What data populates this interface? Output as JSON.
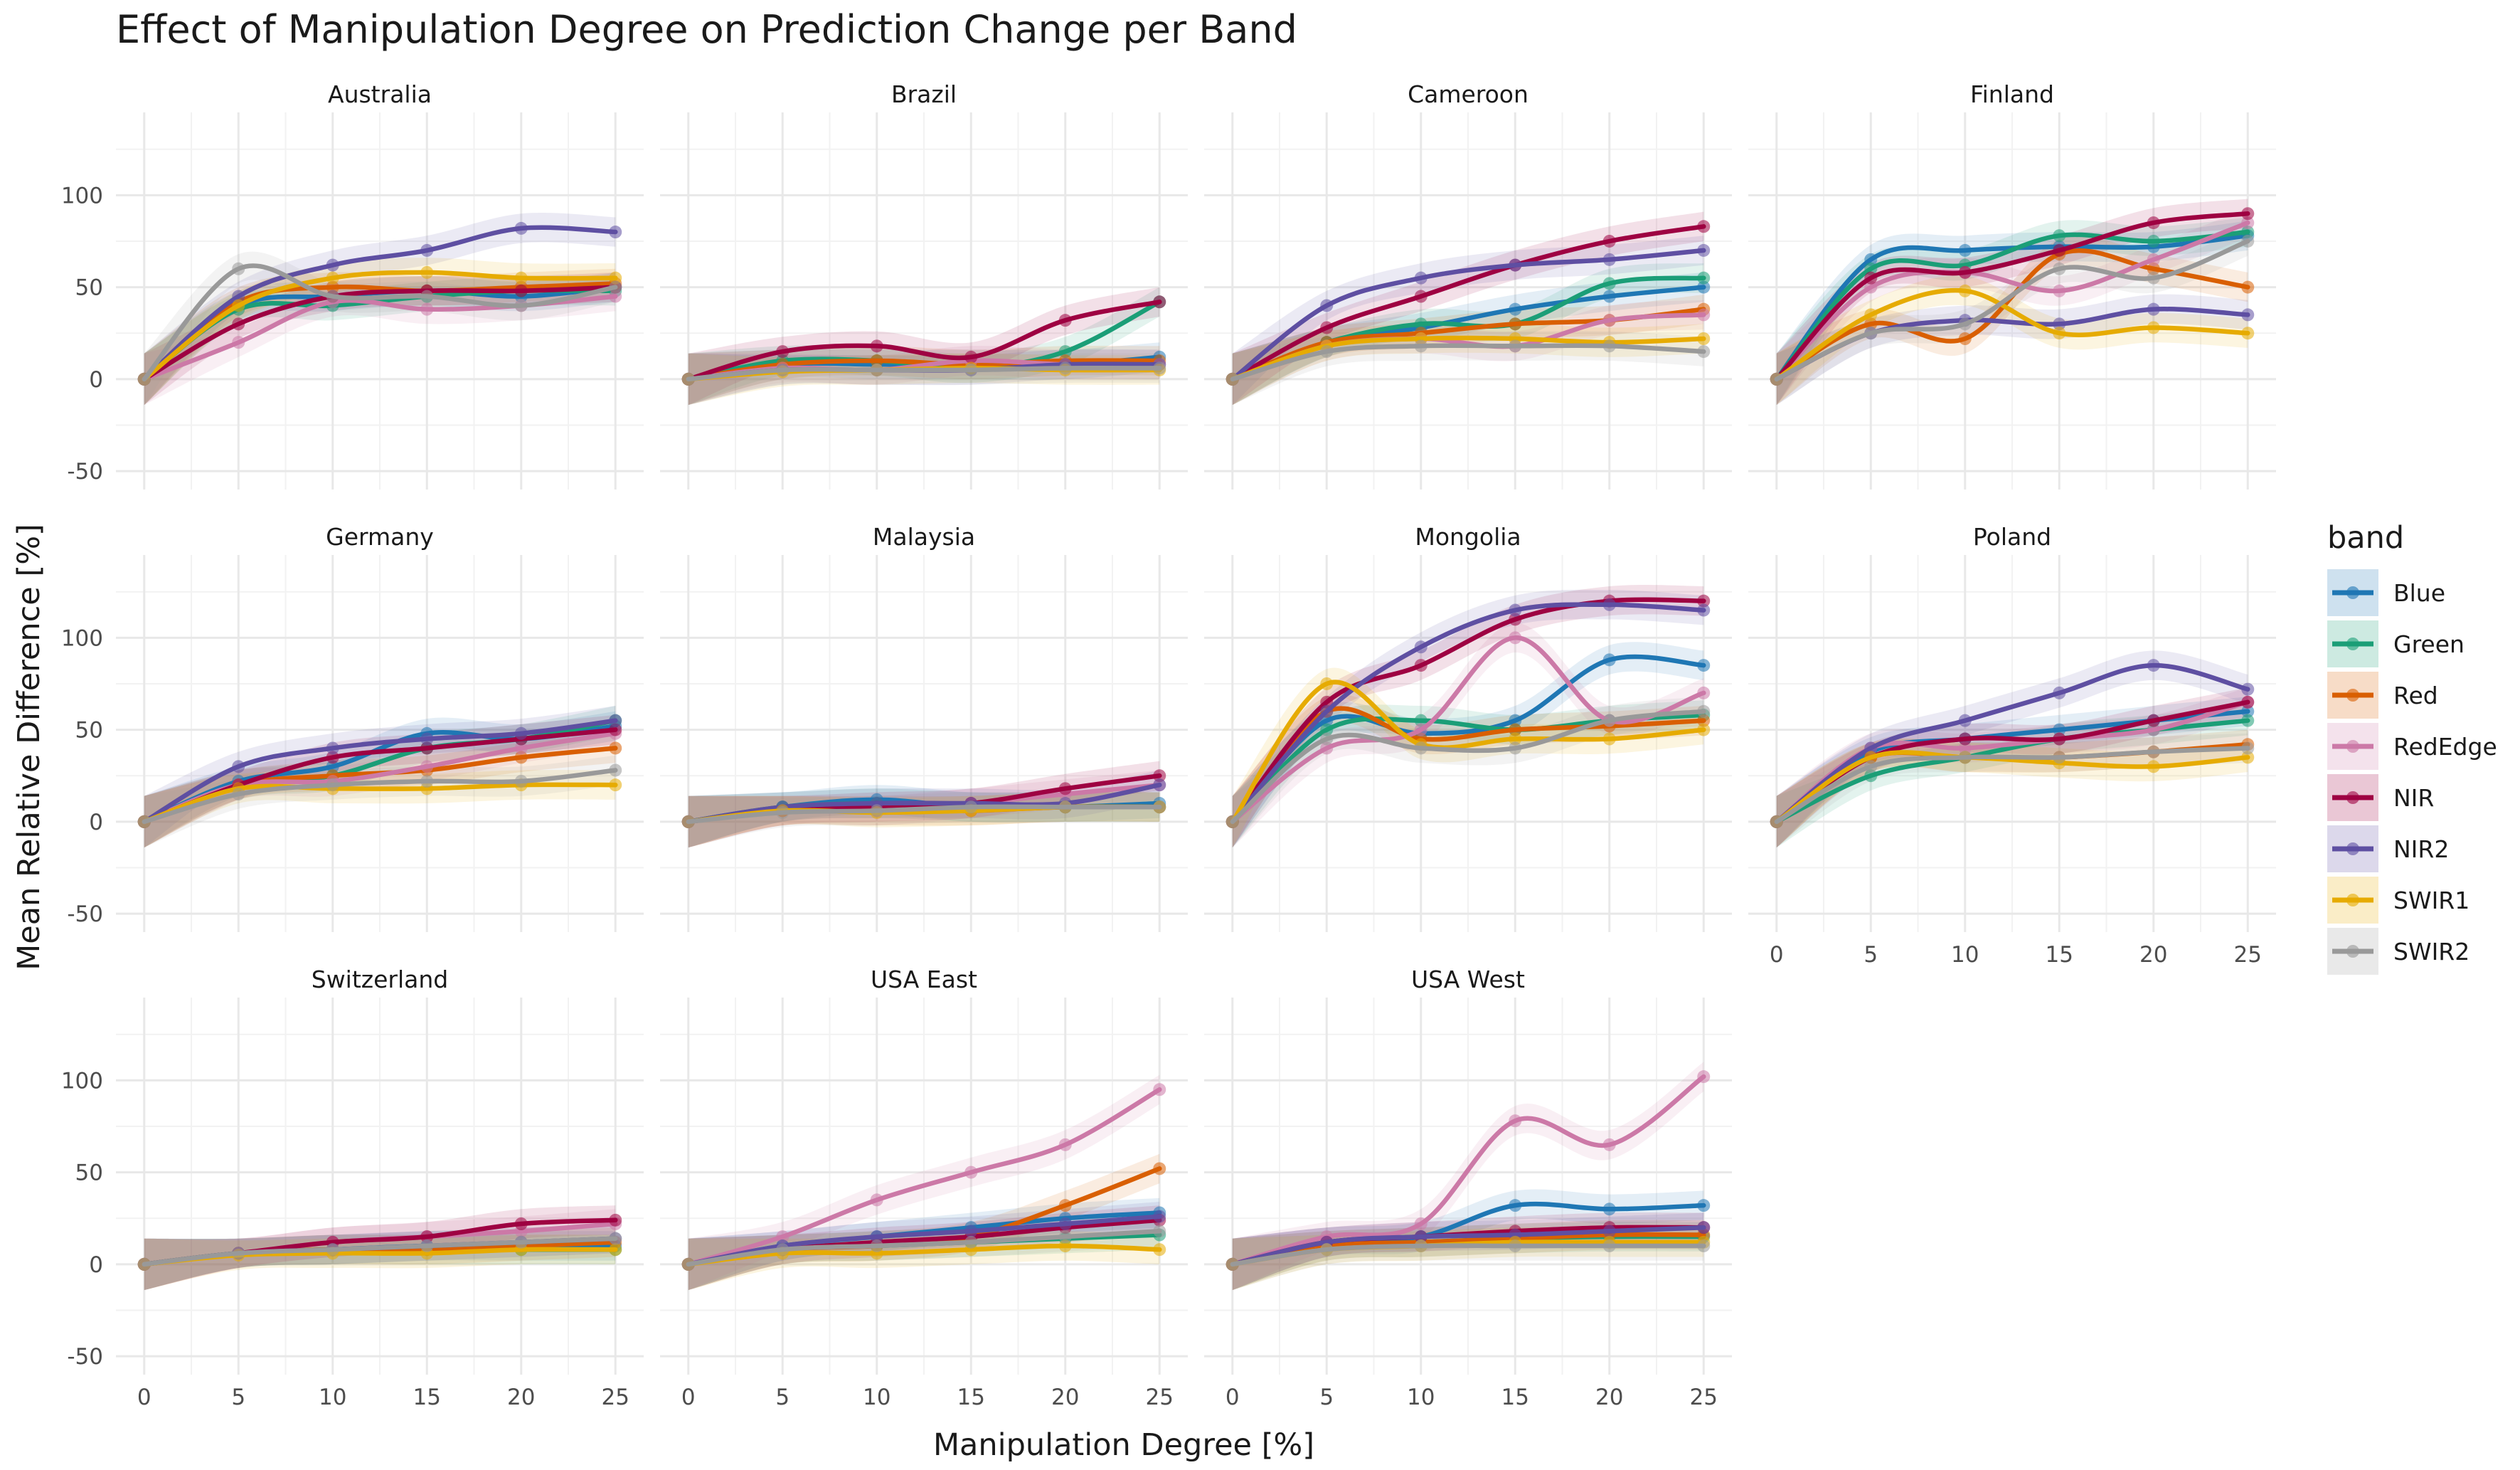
{
  "chart_data": {
    "type": "line",
    "title": "Effect of Manipulation Degree on Prediction Change per Band",
    "xlabel": "Manipulation Degree [%]",
    "ylabel": "Mean Relative Difference [%]",
    "xlim": [
      -1.5,
      26.5
    ],
    "ylim": [
      -60,
      145
    ],
    "x": [
      0,
      5,
      10,
      15,
      20,
      25
    ],
    "xticks": [
      "0",
      "5",
      "10",
      "15",
      "20",
      "25"
    ],
    "yticks": [
      {
        "v": -50,
        "t": "-50"
      },
      {
        "v": 0,
        "t": "0"
      },
      {
        "v": 50,
        "t": "50"
      },
      {
        "v": 100,
        "t": "100"
      }
    ],
    "grid": true,
    "legend": {
      "title": "band",
      "position": "right"
    },
    "bands": [
      {
        "name": "Blue",
        "color": "#1f77b4"
      },
      {
        "name": "Green",
        "color": "#1b9e77"
      },
      {
        "name": "Red",
        "color": "#d95f02"
      },
      {
        "name": "RedEdge",
        "color": "#cc79a7"
      },
      {
        "name": "NIR",
        "color": "#9e0142"
      },
      {
        "name": "NIR2",
        "color": "#5e4fa2"
      },
      {
        "name": "SWIR1",
        "color": "#e6ab02"
      },
      {
        "name": "SWIR2",
        "color": "#999999"
      }
    ],
    "panels": [
      {
        "name": "Australia",
        "series": {
          "Blue": [
            0,
            40,
            45,
            48,
            45,
            50
          ],
          "Green": [
            0,
            38,
            40,
            45,
            48,
            48
          ],
          "Red": [
            0,
            42,
            50,
            48,
            50,
            52
          ],
          "RedEdge": [
            0,
            20,
            42,
            38,
            40,
            45
          ],
          "NIR": [
            0,
            30,
            45,
            48,
            48,
            50
          ],
          "NIR2": [
            0,
            45,
            62,
            70,
            82,
            80
          ],
          "SWIR1": [
            0,
            40,
            55,
            58,
            55,
            55
          ],
          "SWIR2": [
            0,
            60,
            45,
            45,
            40,
            50
          ]
        }
      },
      {
        "name": "Brazil",
        "series": {
          "Blue": [
            0,
            8,
            8,
            8,
            8,
            12
          ],
          "Green": [
            0,
            10,
            10,
            6,
            15,
            42
          ],
          "Red": [
            0,
            8,
            10,
            8,
            10,
            10
          ],
          "RedEdge": [
            0,
            6,
            5,
            10,
            8,
            8
          ],
          "NIR": [
            0,
            15,
            18,
            12,
            32,
            42
          ],
          "NIR2": [
            0,
            5,
            5,
            5,
            8,
            8
          ],
          "SWIR1": [
            0,
            4,
            5,
            6,
            5,
            5
          ],
          "SWIR2": [
            0,
            5,
            5,
            5,
            6,
            6
          ]
        }
      },
      {
        "name": "Cameroon",
        "series": {
          "Blue": [
            0,
            20,
            28,
            38,
            45,
            50
          ],
          "Green": [
            0,
            20,
            30,
            30,
            52,
            55
          ],
          "Red": [
            0,
            20,
            25,
            30,
            32,
            38
          ],
          "RedEdge": [
            0,
            18,
            22,
            18,
            32,
            35
          ],
          "NIR": [
            0,
            28,
            45,
            62,
            75,
            83
          ],
          "NIR2": [
            0,
            40,
            55,
            62,
            65,
            70
          ],
          "SWIR1": [
            0,
            18,
            22,
            22,
            20,
            22
          ],
          "SWIR2": [
            0,
            15,
            18,
            18,
            18,
            15
          ]
        }
      },
      {
        "name": "Finland",
        "series": {
          "Blue": [
            0,
            65,
            70,
            72,
            72,
            78
          ],
          "Green": [
            0,
            60,
            62,
            78,
            75,
            80
          ],
          "Red": [
            0,
            30,
            22,
            68,
            60,
            50
          ],
          "RedEdge": [
            0,
            50,
            58,
            48,
            65,
            85
          ],
          "NIR": [
            0,
            55,
            58,
            70,
            85,
            90
          ],
          "NIR2": [
            0,
            25,
            32,
            30,
            38,
            35
          ],
          "SWIR1": [
            0,
            35,
            48,
            25,
            28,
            25
          ],
          "SWIR2": [
            0,
            25,
            30,
            60,
            55,
            75
          ]
        }
      },
      {
        "name": "Germany",
        "series": {
          "Blue": [
            0,
            22,
            30,
            48,
            45,
            52
          ],
          "Green": [
            0,
            20,
            25,
            40,
            45,
            55
          ],
          "Red": [
            0,
            20,
            25,
            28,
            35,
            40
          ],
          "RedEdge": [
            0,
            20,
            22,
            30,
            40,
            48
          ],
          "NIR": [
            0,
            20,
            35,
            40,
            45,
            50
          ],
          "NIR2": [
            0,
            30,
            40,
            45,
            48,
            55
          ],
          "SWIR1": [
            0,
            18,
            18,
            18,
            20,
            20
          ],
          "SWIR2": [
            0,
            15,
            20,
            22,
            22,
            28
          ]
        }
      },
      {
        "name": "Malaysia",
        "series": {
          "Blue": [
            0,
            8,
            12,
            8,
            8,
            10
          ],
          "Green": [
            0,
            8,
            10,
            8,
            8,
            8
          ],
          "Red": [
            0,
            6,
            6,
            6,
            8,
            8
          ],
          "RedEdge": [
            0,
            6,
            6,
            10,
            15,
            20
          ],
          "NIR": [
            0,
            6,
            8,
            10,
            18,
            25
          ],
          "NIR2": [
            0,
            8,
            10,
            10,
            10,
            20
          ],
          "SWIR1": [
            0,
            6,
            5,
            6,
            8,
            8
          ],
          "SWIR2": [
            0,
            5,
            6,
            8,
            8,
            8
          ]
        }
      },
      {
        "name": "Mongolia",
        "series": {
          "Blue": [
            0,
            55,
            48,
            55,
            88,
            85
          ],
          "Green": [
            0,
            50,
            55,
            50,
            55,
            58
          ],
          "Red": [
            0,
            60,
            45,
            50,
            52,
            55
          ],
          "RedEdge": [
            0,
            40,
            50,
            100,
            55,
            70
          ],
          "NIR": [
            0,
            65,
            85,
            110,
            120,
            120
          ],
          "NIR2": [
            0,
            60,
            95,
            115,
            118,
            115
          ],
          "SWIR1": [
            0,
            75,
            42,
            45,
            45,
            50
          ],
          "SWIR2": [
            0,
            45,
            40,
            40,
            55,
            60
          ]
        }
      },
      {
        "name": "Poland",
        "series": {
          "Blue": [
            0,
            38,
            45,
            50,
            55,
            60
          ],
          "Green": [
            0,
            25,
            35,
            45,
            50,
            55
          ],
          "Red": [
            0,
            35,
            35,
            35,
            38,
            42
          ],
          "RedEdge": [
            0,
            40,
            40,
            45,
            50,
            65
          ],
          "NIR": [
            0,
            35,
            45,
            45,
            55,
            65
          ],
          "NIR2": [
            0,
            40,
            55,
            70,
            85,
            72
          ],
          "SWIR1": [
            0,
            35,
            35,
            32,
            30,
            35
          ],
          "SWIR2": [
            0,
            30,
            35,
            35,
            38,
            40
          ]
        }
      },
      {
        "name": "Switzerland",
        "series": {
          "Blue": [
            0,
            6,
            8,
            10,
            10,
            10
          ],
          "Green": [
            0,
            6,
            8,
            8,
            8,
            8
          ],
          "Red": [
            0,
            6,
            8,
            8,
            10,
            12
          ],
          "RedEdge": [
            0,
            6,
            12,
            15,
            18,
            22
          ],
          "NIR": [
            0,
            6,
            12,
            15,
            22,
            24
          ],
          "NIR2": [
            0,
            6,
            8,
            10,
            12,
            14
          ],
          "SWIR1": [
            0,
            5,
            6,
            6,
            8,
            8
          ],
          "SWIR2": [
            0,
            6,
            8,
            10,
            12,
            14
          ]
        }
      },
      {
        "name": "USA East",
        "series": {
          "Blue": [
            0,
            10,
            15,
            20,
            25,
            28
          ],
          "Green": [
            0,
            8,
            10,
            12,
            14,
            16
          ],
          "Red": [
            0,
            8,
            10,
            15,
            32,
            52
          ],
          "RedEdge": [
            0,
            15,
            35,
            50,
            65,
            95
          ],
          "NIR": [
            0,
            8,
            12,
            15,
            20,
            24
          ],
          "NIR2": [
            0,
            10,
            15,
            18,
            22,
            26
          ],
          "SWIR1": [
            0,
            6,
            6,
            8,
            10,
            8
          ],
          "SWIR2": [
            0,
            8,
            10,
            12,
            15,
            18
          ]
        }
      },
      {
        "name": "USA West",
        "series": {
          "Blue": [
            0,
            12,
            15,
            32,
            30,
            32
          ],
          "Green": [
            0,
            10,
            12,
            14,
            15,
            15
          ],
          "Red": [
            0,
            10,
            12,
            14,
            16,
            16
          ],
          "RedEdge": [
            0,
            15,
            22,
            78,
            65,
            102
          ],
          "NIR": [
            0,
            12,
            15,
            18,
            20,
            20
          ],
          "NIR2": [
            0,
            12,
            15,
            16,
            18,
            20
          ],
          "SWIR1": [
            0,
            8,
            10,
            12,
            12,
            12
          ],
          "SWIR2": [
            0,
            8,
            10,
            10,
            10,
            10
          ]
        }
      }
    ]
  }
}
